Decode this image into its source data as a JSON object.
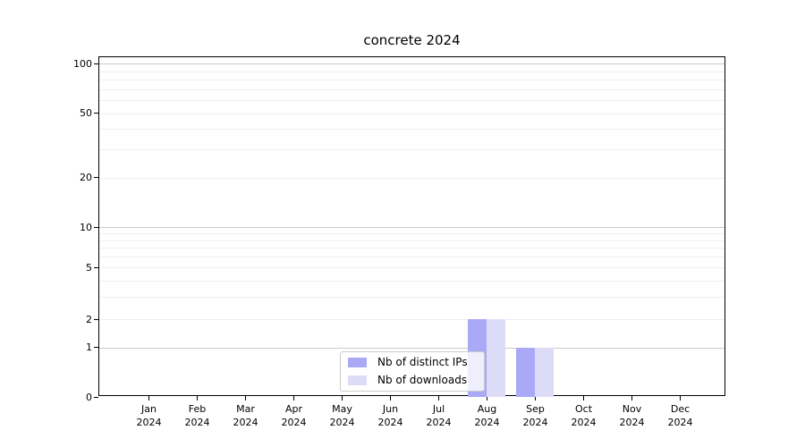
{
  "figure": {
    "title": "concrete 2024"
  },
  "chart_data": {
    "type": "bar",
    "title": "concrete 2024",
    "categories": [
      "Jan 2024",
      "Feb 2024",
      "Mar 2024",
      "Apr 2024",
      "May 2024",
      "Jun 2024",
      "Jul 2024",
      "Aug 2024",
      "Sep 2024",
      "Oct 2024",
      "Nov 2024",
      "Dec 2024"
    ],
    "months": [
      "Jan",
      "Feb",
      "Mar",
      "Apr",
      "May",
      "Jun",
      "Jul",
      "Aug",
      "Sep",
      "Oct",
      "Nov",
      "Dec"
    ],
    "year": "2024",
    "series": [
      {
        "name": "Nb of distinct IPs",
        "color": "#a9a9f5",
        "values": [
          0,
          0,
          0,
          0,
          0,
          0,
          0,
          2,
          1,
          0,
          0,
          0
        ]
      },
      {
        "name": "Nb of downloads",
        "color": "#dcdcf8",
        "values": [
          0,
          0,
          0,
          0,
          0,
          0,
          0,
          2,
          1,
          0,
          0,
          0
        ]
      }
    ],
    "xlabel": "",
    "ylabel": "",
    "yticks": [
      0,
      1,
      2,
      5,
      10,
      20,
      50,
      100
    ],
    "ylim": [
      0,
      110
    ],
    "yscale": "symlog (linear below 1, logarithmic above)",
    "grid": "horizontal major and minor gridlines",
    "legend": {
      "position": "inside lower-center",
      "entries": [
        "Nb of distinct IPs",
        "Nb of downloads"
      ]
    },
    "colors": {
      "grid_major": "#cbcbcb",
      "grid_minor": "#efefef",
      "spine": "#000000",
      "background": "#ffffff"
    }
  }
}
